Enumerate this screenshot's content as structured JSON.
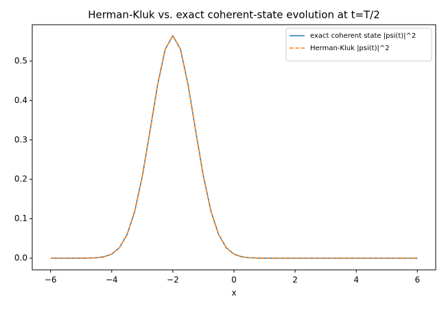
{
  "chart_data": {
    "type": "line",
    "title": "Herman-Kluk vs. exact coherent-state evolution at t=T/2",
    "x_label": "x",
    "x": [
      -6,
      -5.75,
      -5.5,
      -5.25,
      -5,
      -4.75,
      -4.5,
      -4.25,
      -4,
      -3.75,
      -3.5,
      -3.25,
      -3,
      -2.75,
      -2.5,
      -2.25,
      -2,
      -1.75,
      -1.5,
      -1.25,
      -1,
      -0.75,
      -0.5,
      -0.25,
      0,
      0.25,
      0.5,
      0.75,
      1,
      1.25,
      1.5,
      1.75,
      2,
      2.25,
      2.5,
      2.75,
      3,
      3.25,
      3.5,
      3.75,
      4,
      4.25,
      4.5,
      4.75,
      5,
      5.25,
      5.5,
      5.75,
      6
    ],
    "series": [
      {
        "name": "exact coherent state |psi(t)|^2",
        "color": "#1f77b4",
        "linestyle": "solid",
        "values": [
          0,
          0,
          0,
          0,
          0.0001,
          0.0003,
          0.0011,
          0.0036,
          0.0103,
          0.0264,
          0.0595,
          0.1182,
          0.2076,
          0.3215,
          0.4394,
          0.53,
          0.5642,
          0.53,
          0.4394,
          0.3215,
          0.2076,
          0.1182,
          0.0595,
          0.0264,
          0.0103,
          0.0036,
          0.0011,
          0.0003,
          0.0001,
          0,
          0,
          0,
          0,
          0,
          0,
          0,
          0,
          0,
          0,
          0,
          0,
          0,
          0,
          0,
          0,
          0,
          0,
          0,
          0
        ]
      },
      {
        "name": "Herman-Kluk |psi(t)|^2",
        "color": "#ff7f0e",
        "linestyle": "dashed",
        "values": [
          0,
          0,
          0,
          0,
          0.0001,
          0.0003,
          0.0011,
          0.0036,
          0.0103,
          0.0264,
          0.0595,
          0.1182,
          0.2076,
          0.3215,
          0.4394,
          0.53,
          0.5642,
          0.53,
          0.4394,
          0.3215,
          0.2076,
          0.1182,
          0.0595,
          0.0264,
          0.0103,
          0.0036,
          0.0011,
          0.0003,
          0.0001,
          0,
          0,
          0,
          0,
          0,
          0,
          0,
          0,
          0,
          0,
          0,
          0,
          0,
          0,
          0,
          0,
          0,
          0,
          0,
          0
        ]
      }
    ],
    "xlim": [
      -6.6,
      6.6
    ],
    "ylim": [
      -0.0296,
      0.5922
    ],
    "xticks": [
      {
        "value": -6,
        "label": "−6"
      },
      {
        "value": -4,
        "label": "−4"
      },
      {
        "value": -2,
        "label": "−2"
      },
      0,
      2,
      4,
      6
    ],
    "yticks": [
      {
        "value": 0,
        "label": "0.0"
      },
      0.1,
      0.2,
      0.3,
      0.4,
      0.5
    ],
    "grid": false,
    "legend": "upper right"
  }
}
